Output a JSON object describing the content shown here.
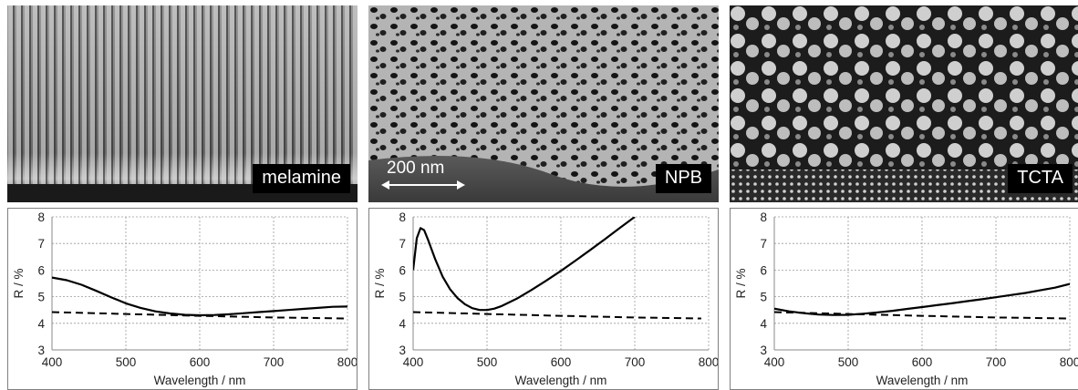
{
  "panels": [
    {
      "label": "melamine",
      "scale_bar": ""
    },
    {
      "label": "NPB",
      "scale_bar": "200 nm"
    },
    {
      "label": "TCTA",
      "scale_bar": ""
    }
  ],
  "chart_data": [
    {
      "type": "line",
      "xlabel": "Wavelength / nm",
      "ylabel": "R / %",
      "xlim": [
        400,
        800
      ],
      "ylim": [
        3,
        8
      ],
      "xticks": [
        400,
        500,
        600,
        700,
        800
      ],
      "yticks": [
        3,
        4,
        5,
        6,
        7,
        8
      ],
      "grid": true,
      "series": [
        {
          "style": "solid",
          "x": [
            400,
            420,
            440,
            460,
            480,
            500,
            520,
            540,
            560,
            580,
            600,
            620,
            640,
            660,
            680,
            700,
            720,
            740,
            760,
            780,
            800
          ],
          "y": [
            5.72,
            5.62,
            5.45,
            5.22,
            4.98,
            4.75,
            4.58,
            4.45,
            4.37,
            4.32,
            4.3,
            4.31,
            4.34,
            4.38,
            4.42,
            4.46,
            4.5,
            4.54,
            4.58,
            4.62,
            4.63
          ]
        },
        {
          "style": "dashed",
          "x": [
            400,
            500,
            600,
            700,
            800
          ],
          "y": [
            4.42,
            4.35,
            4.28,
            4.22,
            4.18
          ]
        }
      ]
    },
    {
      "type": "line",
      "xlabel": "Wavelength / nm",
      "ylabel": "R / %",
      "xlim": [
        400,
        800
      ],
      "ylim": [
        3,
        8
      ],
      "xticks": [
        400,
        500,
        600,
        700,
        800
      ],
      "yticks": [
        3,
        4,
        5,
        6,
        7,
        8
      ],
      "grid": true,
      "series": [
        {
          "style": "solid",
          "x": [
            400,
            405,
            410,
            415,
            420,
            430,
            440,
            450,
            460,
            470,
            480,
            490,
            500,
            510,
            520,
            540,
            560,
            580,
            600,
            620,
            640,
            660,
            680,
            700
          ],
          "y": [
            6.0,
            7.2,
            7.58,
            7.5,
            7.15,
            6.4,
            5.75,
            5.28,
            4.95,
            4.72,
            4.57,
            4.5,
            4.5,
            4.55,
            4.65,
            4.92,
            5.25,
            5.6,
            5.97,
            6.36,
            6.76,
            7.17,
            7.59,
            8.0
          ]
        },
        {
          "style": "dashed",
          "x": [
            400,
            500,
            600,
            700,
            790
          ],
          "y": [
            4.42,
            4.35,
            4.28,
            4.22,
            4.18
          ]
        }
      ]
    },
    {
      "type": "line",
      "xlabel": "Wavelength / nm",
      "ylabel": "R / %",
      "xlim": [
        400,
        800
      ],
      "ylim": [
        3,
        8
      ],
      "xticks": [
        400,
        500,
        600,
        700,
        800
      ],
      "yticks": [
        3,
        4,
        5,
        6,
        7,
        8
      ],
      "grid": true,
      "series": [
        {
          "style": "solid",
          "x": [
            400,
            420,
            440,
            460,
            480,
            500,
            520,
            540,
            560,
            580,
            600,
            620,
            640,
            660,
            680,
            700,
            720,
            740,
            760,
            780,
            800
          ],
          "y": [
            4.55,
            4.45,
            4.38,
            4.33,
            4.31,
            4.32,
            4.36,
            4.41,
            4.47,
            4.54,
            4.61,
            4.68,
            4.75,
            4.83,
            4.9,
            4.98,
            5.06,
            5.14,
            5.24,
            5.34,
            5.48
          ]
        },
        {
          "style": "dashed",
          "x": [
            400,
            500,
            600,
            700,
            800
          ],
          "y": [
            4.42,
            4.35,
            4.28,
            4.22,
            4.18
          ]
        }
      ]
    }
  ]
}
